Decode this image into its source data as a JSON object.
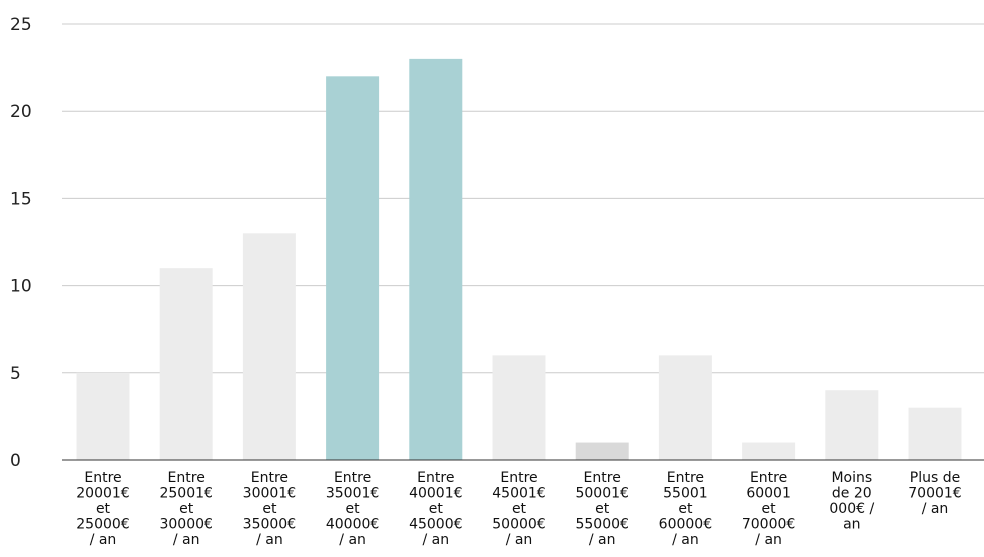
{
  "chart_data": {
    "type": "bar",
    "title": "",
    "xlabel": "",
    "ylabel": "",
    "ylim": [
      0,
      25
    ],
    "y_ticks": [
      0,
      5,
      10,
      15,
      20,
      25
    ],
    "y_tick_labels": [
      "0",
      "5",
      "10",
      "15",
      "20",
      "25"
    ],
    "grid": true,
    "legend": "none",
    "categories": [
      "Entre 20001€ et 25000€ / an",
      "Entre 25001€ et 30000€ / an",
      "Entre 30001€ et 35000€ / an",
      "Entre 35001€ et 40000€ / an",
      "Entre 40001€ et 45000€ / an",
      "Entre 45001€ et 50000€ / an",
      "Entre 50001€ et 55000€ / an",
      "Entre 55001 et 60000€ / an",
      "Entre 60001 et 70000€ / an",
      "Moins de 20 000€ / an",
      "Plus de 70001€ / an"
    ],
    "category_lines": [
      [
        "Entre",
        "20001€",
        "et",
        "25000€",
        "/ an"
      ],
      [
        "Entre",
        "25001€",
        "et",
        "30000€",
        "/ an"
      ],
      [
        "Entre",
        "30001€",
        "et",
        "35000€",
        "/ an"
      ],
      [
        "Entre",
        "35001€",
        "et",
        "40000€",
        "/ an"
      ],
      [
        "Entre",
        "40001€",
        "et",
        "45000€",
        "/ an"
      ],
      [
        "Entre",
        "45001€",
        "et",
        "50000€",
        "/ an"
      ],
      [
        "Entre",
        "50001€",
        "et",
        "55000€",
        "/ an"
      ],
      [
        "Entre",
        "55001",
        "et",
        "60000€",
        "/ an"
      ],
      [
        "Entre",
        "60001",
        "et",
        "70000€",
        "/ an"
      ],
      [
        "Moins",
        "de 20",
        "000€ /",
        "an"
      ],
      [
        "Plus de",
        "70001€",
        "/ an"
      ]
    ],
    "values": [
      5,
      11,
      13,
      22,
      23,
      6,
      1,
      6,
      1,
      4,
      3
    ],
    "bar_colors": [
      "#ececec",
      "#ececec",
      "#ececec",
      "#a9d1d4",
      "#a9d1d4",
      "#ececec",
      "#d9d9d9",
      "#ececec",
      "#ececec",
      "#ececec",
      "#ececec"
    ],
    "grid_color": "#cccccc",
    "axis_color": "#333333"
  }
}
